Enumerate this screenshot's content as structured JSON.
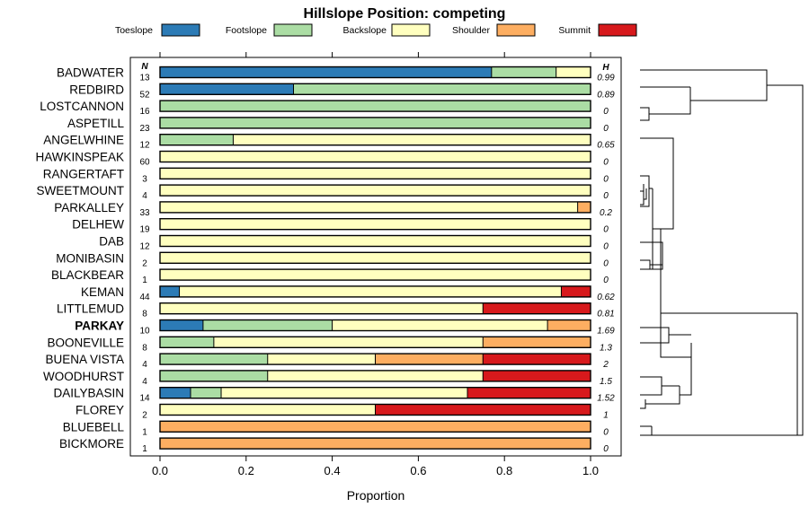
{
  "chart_data": {
    "type": "bar",
    "orientation": "horizontal",
    "stacked": true,
    "title": "Hillslope Position: competing",
    "xlabel": "Proportion",
    "ylabel": "",
    "xlim": [
      0,
      1
    ],
    "xticks": [
      "0.0",
      "0.2",
      "0.4",
      "0.6",
      "0.8",
      "1.0"
    ],
    "n_header": "N",
    "h_header": "H",
    "highlight_category": "PARKAY",
    "series": [
      {
        "name": "Toeslope",
        "color": "#2c7bb6"
      },
      {
        "name": "Footslope",
        "color": "#abdda4"
      },
      {
        "name": "Backslope",
        "color": "#ffffbf"
      },
      {
        "name": "Shoulder",
        "color": "#fdae61"
      },
      {
        "name": "Summit",
        "color": "#d7191c"
      }
    ],
    "categories": [
      "BADWATER",
      "REDBIRD",
      "LOSTCANNON",
      "ASPETILL",
      "ANGELWHINE",
      "HAWKINSPEAK",
      "RANGERTAFT",
      "SWEETMOUNT",
      "PARKALLEY",
      "DELHEW",
      "DAB",
      "MONIBASIN",
      "BLACKBEAR",
      "KEMAN",
      "LITTLEMUD",
      "PARKAY",
      "BOONEVILLE",
      "BUENA VISTA",
      "WOODHURST",
      "DAILYBASIN",
      "FLOREY",
      "BLUEBELL",
      "BICKMORE"
    ],
    "n": [
      "13",
      "52",
      "16",
      "23",
      "12",
      "60",
      "3",
      "4",
      "33",
      "19",
      "12",
      "2",
      "1",
      "44",
      "8",
      "10",
      "8",
      "4",
      "4",
      "14",
      "2",
      "1",
      "1"
    ],
    "h": [
      "0.99",
      "0.89",
      "0",
      "0",
      "0.65",
      "0",
      "0",
      "0",
      "0.2",
      "0",
      "0",
      "0",
      "0",
      "0.62",
      "0.81",
      "1.69",
      "1.3",
      "2",
      "1.5",
      "1.52",
      "1",
      "0",
      "0"
    ],
    "proportions": [
      [
        0.77,
        0.15,
        0.08,
        0,
        0
      ],
      [
        0.31,
        0.69,
        0,
        0,
        0
      ],
      [
        0,
        1,
        0,
        0,
        0
      ],
      [
        0,
        1,
        0,
        0,
        0
      ],
      [
        0,
        0.17,
        0.83,
        0,
        0
      ],
      [
        0,
        0,
        1,
        0,
        0
      ],
      [
        0,
        0,
        1,
        0,
        0
      ],
      [
        0,
        0,
        1,
        0,
        0
      ],
      [
        0,
        0,
        0.97,
        0.03,
        0
      ],
      [
        0,
        0,
        1,
        0,
        0
      ],
      [
        0,
        0,
        1,
        0,
        0
      ],
      [
        0,
        0,
        1,
        0,
        0
      ],
      [
        0,
        0,
        1,
        0,
        0
      ],
      [
        0.045,
        0,
        0.887,
        0,
        0.068
      ],
      [
        0,
        0,
        0.75,
        0,
        0.25
      ],
      [
        0.1,
        0.3,
        0.5,
        0.1,
        0
      ],
      [
        0,
        0.125,
        0.625,
        0.25,
        0
      ],
      [
        0,
        0.25,
        0.25,
        0.25,
        0.25
      ],
      [
        0,
        0.25,
        0.5,
        0,
        0.25
      ],
      [
        0.071,
        0.071,
        0.572,
        0,
        0.286
      ],
      [
        0,
        0,
        0.5,
        0,
        0.5
      ],
      [
        0,
        0,
        0,
        1,
        0
      ],
      [
        0,
        0,
        0,
        1,
        0
      ]
    ]
  }
}
